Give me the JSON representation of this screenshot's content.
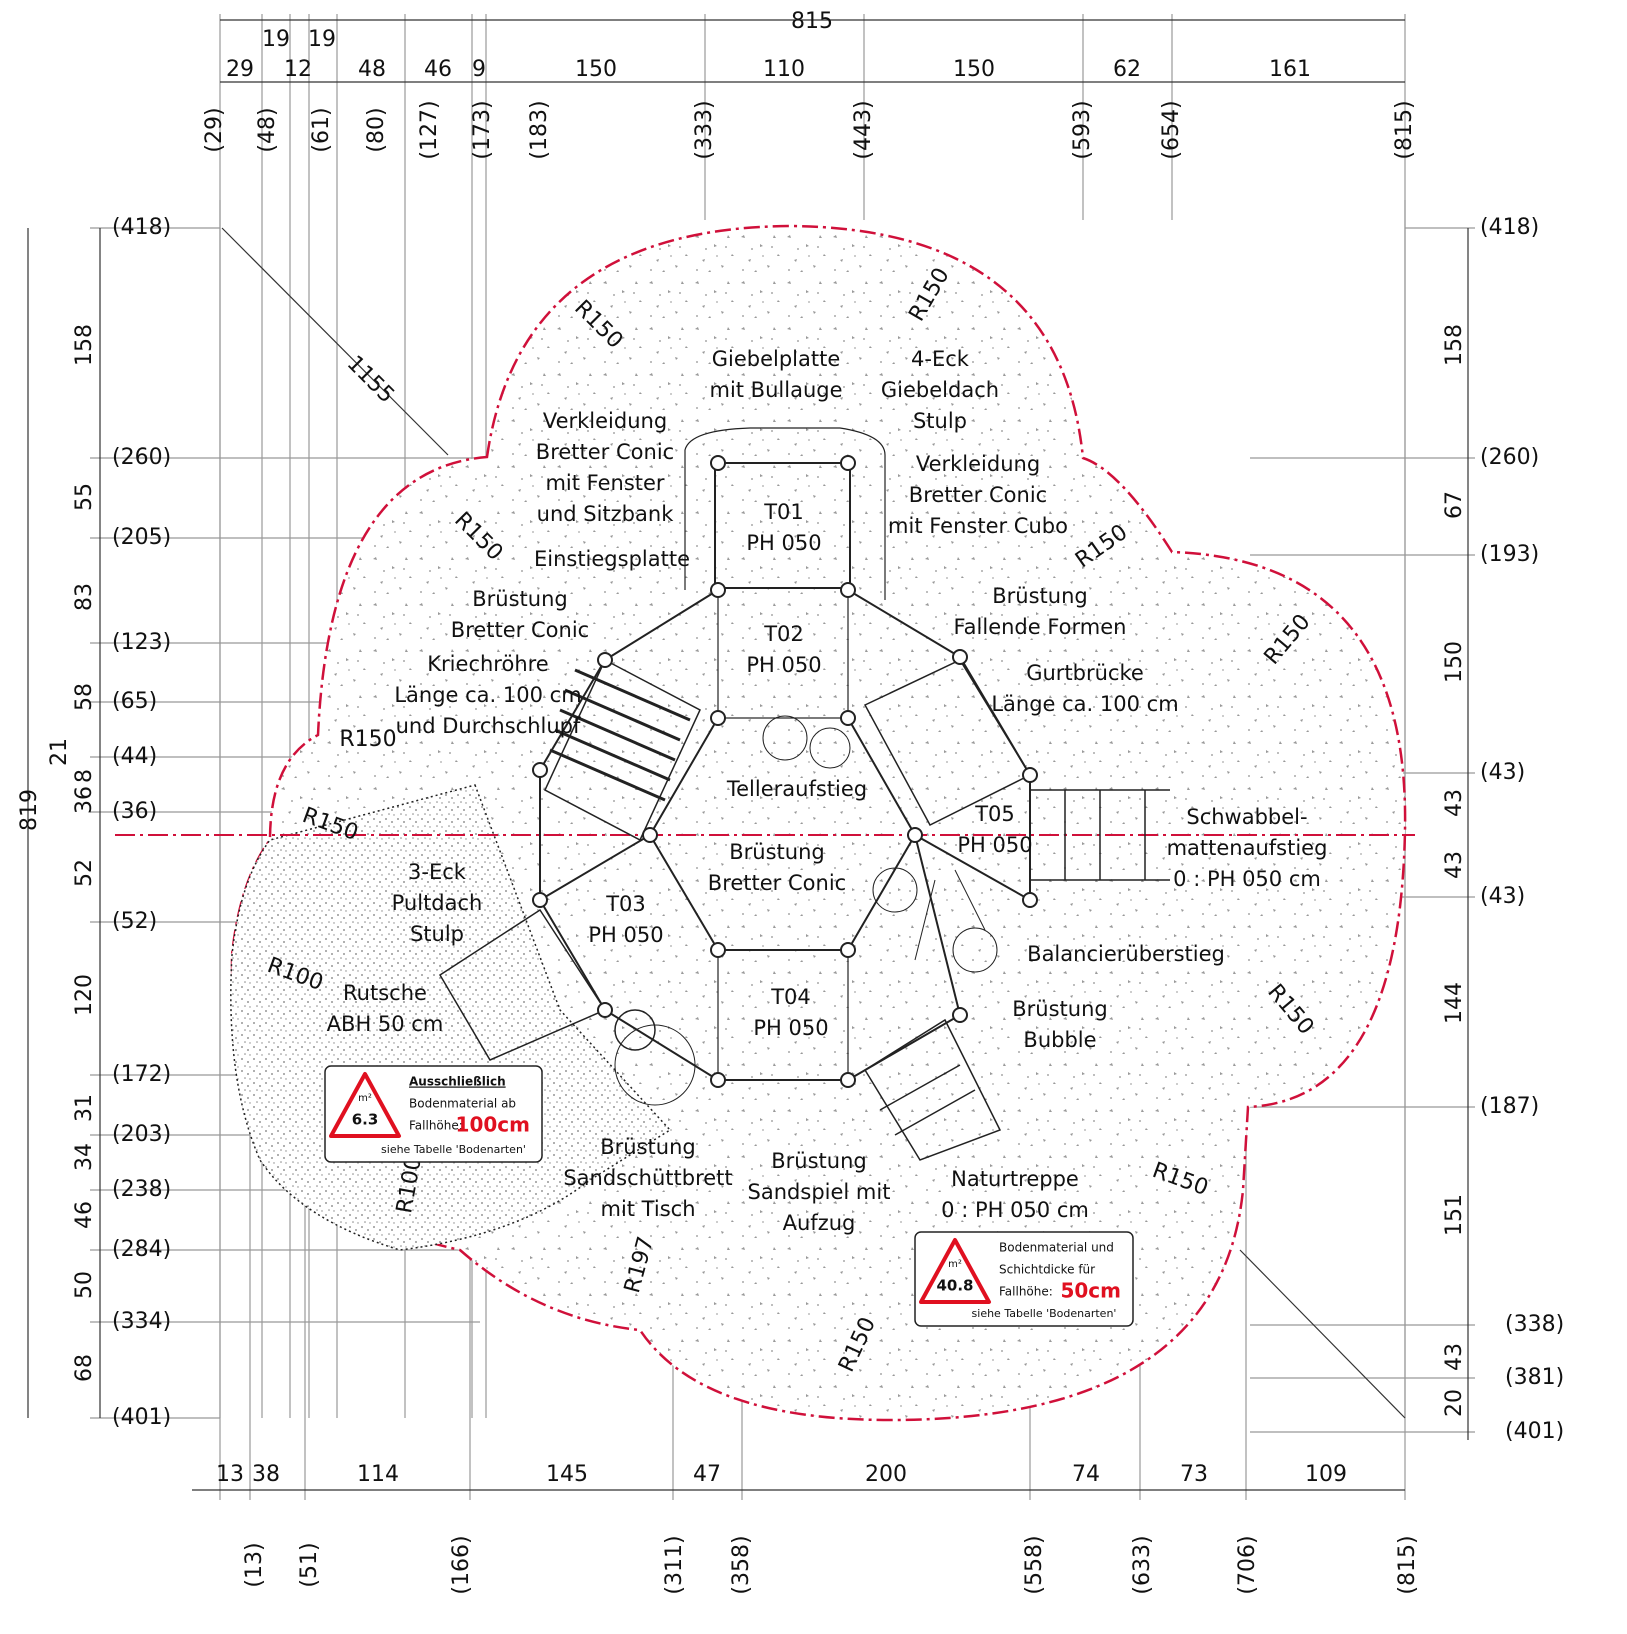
{
  "dimensions": {
    "top": {
      "total": "815",
      "segments": [
        "29",
        "19",
        "12",
        "19",
        "48",
        "46",
        "9",
        "150",
        "110",
        "150",
        "62",
        "161"
      ],
      "coordinates": [
        "(29)",
        "(48)",
        "(61)",
        "(80)",
        "(127)",
        "(173)",
        "(183)",
        "(333)",
        "(443)",
        "(593)",
        "(654)",
        "(815)"
      ]
    },
    "bottom": {
      "segments": [
        "13",
        "38",
        "114",
        "145",
        "47",
        "200",
        "74",
        "73",
        "109"
      ],
      "coordinates": [
        "(13)",
        "(51)",
        "(166)",
        "(311)",
        "(358)",
        "(558)",
        "(633)",
        "(706)",
        "(815)"
      ]
    },
    "left": {
      "total": "819",
      "segments": [
        "158",
        "55",
        "83",
        "58",
        "21",
        "8",
        "36",
        "52",
        "120",
        "31",
        "34",
        "46",
        "50",
        "68"
      ],
      "coordinates": [
        "(418)",
        "(260)",
        "(205)",
        "(123)",
        "(65)",
        "(44)",
        "(36)",
        "(52)",
        "(172)",
        "(203)",
        "(238)",
        "(284)",
        "(334)",
        "(401)"
      ]
    },
    "right": {
      "segments": [
        "158",
        "67",
        "150",
        "43",
        "43",
        "144",
        "151",
        "43",
        "20"
      ],
      "coordinates": [
        "(418)",
        "(260)",
        "(193)",
        "(43)",
        "(43)",
        "(187)",
        "(338)",
        "(381)",
        "(401)"
      ]
    }
  },
  "radii": [
    "R150",
    "R150",
    "R150",
    "R150",
    "R150",
    "R150",
    "R150",
    "R150",
    "R150",
    "R150",
    "R100",
    "R100",
    "R197",
    "1155"
  ],
  "labels": [
    [
      "Giebelplatte",
      "mit Bullauge"
    ],
    [
      "4-Eck",
      "Giebeldach",
      "Stulp"
    ],
    [
      "Verkleidung",
      "Bretter Conic",
      "mit Fenster",
      "und Sitzbank"
    ],
    [
      "Verkleidung",
      "Bretter Conic",
      "mit Fenster Cubo"
    ],
    [
      "Einstiegsplatte"
    ],
    [
      "T01",
      "PH 050"
    ],
    [
      "T02",
      "PH 050"
    ],
    [
      "Brüstung",
      "Bretter Conic"
    ],
    [
      "Brüstung",
      "Fallende Formen"
    ],
    [
      "Kriechröhre",
      "Länge ca. 100 cm",
      "und Durchschlupf"
    ],
    [
      "Gurtbrücke",
      "Länge ca. 100 cm"
    ],
    [
      "Telleraufstieg"
    ],
    [
      "T05",
      "PH 050"
    ],
    [
      "Schwabbel-",
      "mattenaufstieg",
      "0 : PH 050 cm"
    ],
    [
      "Brüstung",
      "Bretter Conic"
    ],
    [
      "3-Eck",
      "Pultdach",
      "Stulp"
    ],
    [
      "T03",
      "PH 050"
    ],
    [
      "Balancierüberstieg"
    ],
    [
      "Rutsche",
      "ABH 50 cm"
    ],
    [
      "T04",
      "PH 050"
    ],
    [
      "Brüstung",
      "Bubble"
    ],
    [
      "Brüstung",
      "Sandschüttbrett",
      "mit Tisch"
    ],
    [
      "Brüstung",
      "Sandspiel mit",
      "Aufzug"
    ],
    [
      "Naturtreppe",
      "0 : PH 050 cm"
    ]
  ],
  "signs": [
    {
      "unit": "m²",
      "area": "6.3",
      "heading": "Ausschließlich",
      "line1": "Bodenmaterial ab",
      "line2": "Fallhöhe:",
      "height": "100cm",
      "note": "siehe Tabelle 'Bodenarten'"
    },
    {
      "unit": "m²",
      "area": "40.8",
      "line1": "Bodenmaterial und",
      "line2": "Schichtdicke für",
      "line3": "Fallhöhe:",
      "height": "50cm",
      "note": "siehe Tabelle 'Bodenarten'"
    }
  ]
}
